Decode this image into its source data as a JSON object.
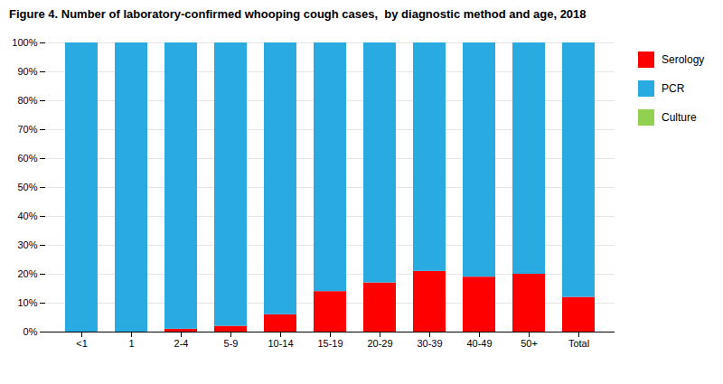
{
  "chart_data": {
    "type": "bar",
    "stacked": true,
    "title": "Figure 4. Number of laboratory-confirmed whooping cough cases,  by diagnostic method and age, 2018",
    "categories": [
      "<1",
      "1",
      "2-4",
      "5-9",
      "10-14",
      "15-19",
      "20-29",
      "30-39",
      "40-49",
      "50+",
      "Total"
    ],
    "series": [
      {
        "name": "Serology",
        "color": "#FF0000",
        "values": [
          0,
          0,
          1,
          2,
          6,
          14,
          17,
          21,
          19,
          20,
          12
        ]
      },
      {
        "name": "PCR",
        "color": "#29ABE2",
        "values": [
          100,
          100,
          99,
          98,
          94,
          86,
          83,
          79,
          81,
          80,
          88
        ]
      },
      {
        "name": "Culture",
        "color": "#92D050",
        "values": [
          0,
          0,
          0,
          0,
          0,
          0,
          0,
          0,
          0,
          0,
          0
        ]
      }
    ],
    "ylim": [
      0,
      100
    ],
    "yticks": [
      {
        "value": 0,
        "label": "0%"
      },
      {
        "value": 10,
        "label": "10%"
      },
      {
        "value": 20,
        "label": "20%"
      },
      {
        "value": 30,
        "label": "30%"
      },
      {
        "value": 40,
        "label": "40%"
      },
      {
        "value": 50,
        "label": "50%"
      },
      {
        "value": 60,
        "label": "60%"
      },
      {
        "value": 70,
        "label": "70%"
      },
      {
        "value": 80,
        "label": "80%"
      },
      {
        "value": 90,
        "label": "90%"
      },
      {
        "value": 100,
        "label": "100%"
      }
    ],
    "grid": true,
    "legend": "right"
  }
}
